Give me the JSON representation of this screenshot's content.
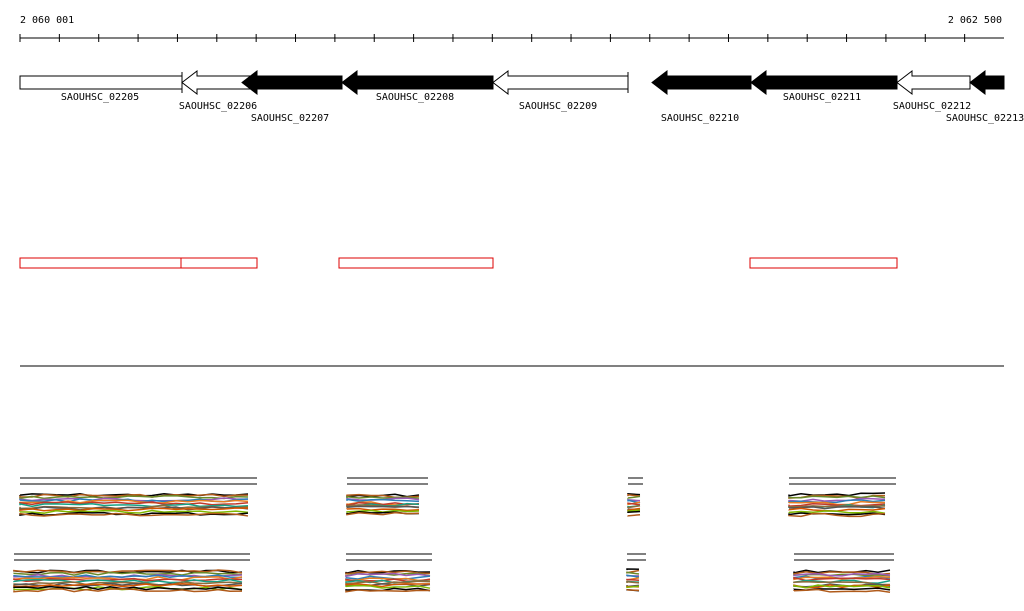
{
  "ruler": {
    "start_label": "2 060 001",
    "end_label": "2 062 500"
  },
  "genes": [
    {
      "label": "SAOUHSC_02205"
    },
    {
      "label": "SAOUHSC_02206"
    },
    {
      "label": "SAOUHSC_02207"
    },
    {
      "label": "SAOUHSC_02208"
    },
    {
      "label": "SAOUHSC_02209"
    },
    {
      "label": "SAOUHSC_02210"
    },
    {
      "label": "SAOUHSC_02211"
    },
    {
      "label": "SAOUHSC_02212"
    },
    {
      "label": "SAOUHSC_02213"
    }
  ]
}
